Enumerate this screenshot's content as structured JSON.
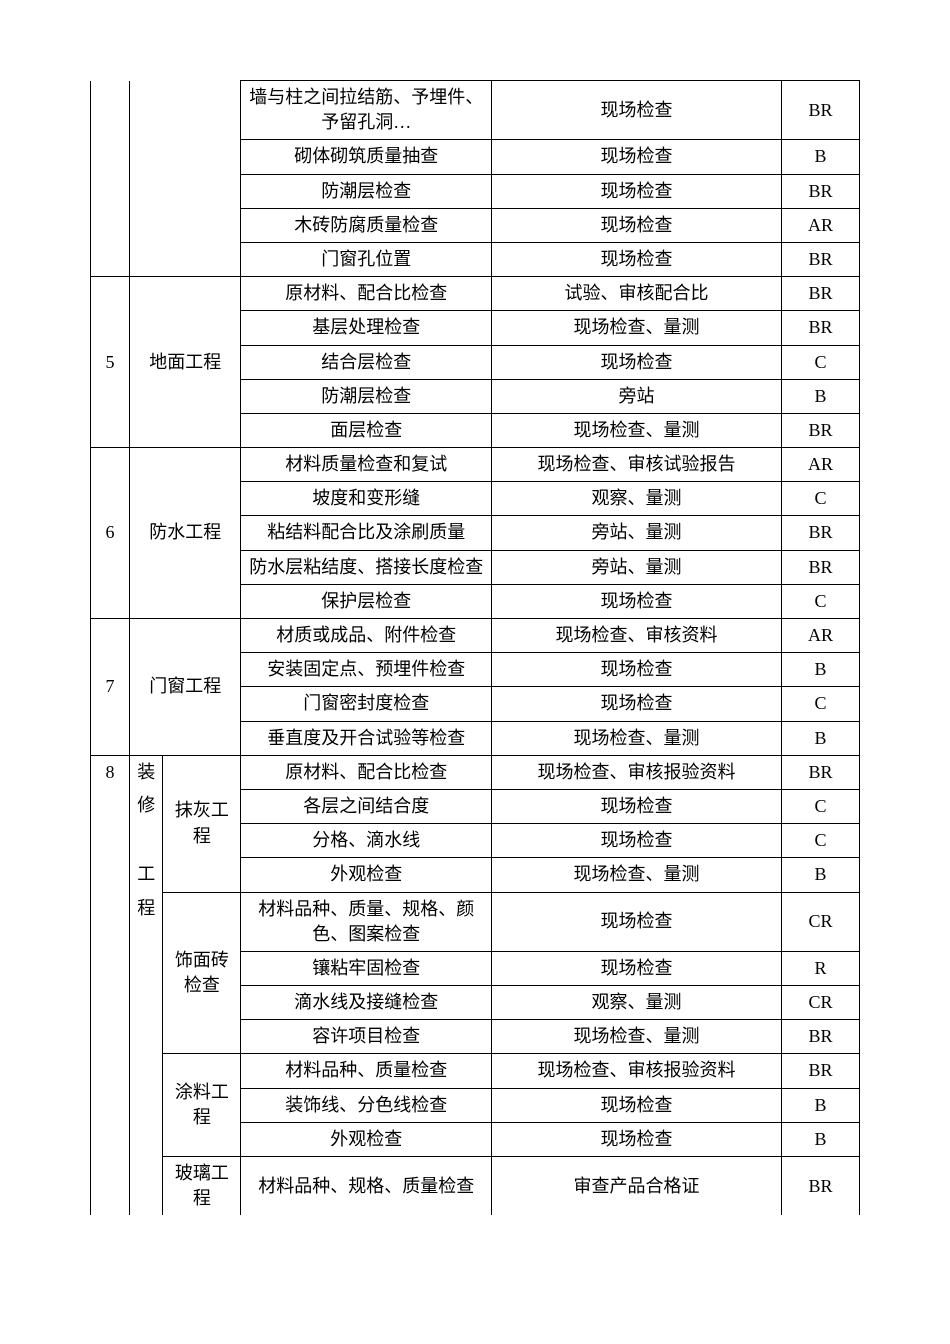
{
  "table": {
    "background_color": "#ffffff",
    "border_color": "#000000",
    "font_size": 18,
    "font_family": "SimSun",
    "text_color": "#000000",
    "columns": {
      "num_width": 35,
      "cat_width": 30,
      "sub_width": 70,
      "item_width": 225,
      "method_width": 260,
      "code_width": 70
    }
  },
  "pre_rows": [
    {
      "item": "墙与柱之间拉结筋、予埋件、予留孔洞…",
      "method": "现场检查",
      "code": "BR"
    },
    {
      "item": "砌体砌筑质量抽查",
      "method": "现场检查",
      "code": "B"
    },
    {
      "item": "防潮层检查",
      "method": "现场检查",
      "code": "BR"
    },
    {
      "item": "木砖防腐质量检查",
      "method": "现场检查",
      "code": "AR"
    },
    {
      "item": "门窗孔位置",
      "method": "现场检查",
      "code": "BR"
    }
  ],
  "section5": {
    "num": "5",
    "title": "地面工程",
    "rows": [
      {
        "item": "原材料、配合比检查",
        "method": "试验、审核配合比",
        "code": "BR"
      },
      {
        "item": "基层处理检查",
        "method": "现场检查、量测",
        "code": "BR"
      },
      {
        "item": "结合层检查",
        "method": "现场检查",
        "code": "C"
      },
      {
        "item": "防潮层检查",
        "method": "旁站",
        "code": "B"
      },
      {
        "item": "面层检查",
        "method": "现场检查、量测",
        "code": "BR"
      }
    ]
  },
  "section6": {
    "num": "6",
    "title": "防水工程",
    "rows": [
      {
        "item": "材料质量检查和复试",
        "method": "现场检查、审核试验报告",
        "code": "AR"
      },
      {
        "item": "坡度和变形缝",
        "method": "观察、量测",
        "code": "C"
      },
      {
        "item": "粘结料配合比及涂刷质量",
        "method": "旁站、量测",
        "code": "BR"
      },
      {
        "item": "防水层粘结度、搭接长度检查",
        "method": "旁站、量测",
        "code": "BR"
      },
      {
        "item": "保护层检查",
        "method": "现场检查",
        "code": "C"
      }
    ]
  },
  "section7": {
    "num": "7",
    "title": "门窗工程",
    "rows": [
      {
        "item": "材质或成品、附件检查",
        "method": "现场检查、审核资料",
        "code": "AR"
      },
      {
        "item": "安装固定点、预埋件检查",
        "method": "现场检查",
        "code": "B"
      },
      {
        "item": "门窗密封度检查",
        "method": "现场检查",
        "code": "C"
      },
      {
        "item": "垂直度及开合试验等检查",
        "method": "现场检查、量测",
        "code": "B"
      }
    ]
  },
  "section8": {
    "num": "8",
    "title_chars": [
      "装",
      "修",
      "工",
      "程"
    ],
    "sub1": {
      "title": "抹灰工程",
      "rows": [
        {
          "item": "原材料、配合比检查",
          "method": "现场检查、审核报验资料",
          "code": "BR"
        },
        {
          "item": "各层之间结合度",
          "method": "现场检查",
          "code": "C"
        },
        {
          "item": "分格、滴水线",
          "method": "现场检查",
          "code": "C"
        },
        {
          "item": "外观检查",
          "method": "现场检查、量测",
          "code": "B"
        }
      ]
    },
    "sub2": {
      "title": "饰面砖检查",
      "rows": [
        {
          "item": "材料品种、质量、规格、颜色、图案检查",
          "method": "现场检查",
          "code": "CR"
        },
        {
          "item": "镶粘牢固检查",
          "method": "现场检查",
          "code": "R"
        },
        {
          "item": "滴水线及接缝检查",
          "method": "观察、量测",
          "code": "CR"
        },
        {
          "item": "容许项目检查",
          "method": "现场检查、量测",
          "code": "BR"
        }
      ]
    },
    "sub3": {
      "title": "涂料工程",
      "rows": [
        {
          "item": "材料品种、质量检查",
          "method": "现场检查、审核报验资料",
          "code": "BR"
        },
        {
          "item": "装饰线、分色线检查",
          "method": "现场检查",
          "code": "B"
        },
        {
          "item": "外观检查",
          "method": "现场检查",
          "code": "B"
        }
      ]
    },
    "sub4": {
      "title": "玻璃工程",
      "rows": [
        {
          "item": "材料品种、规格、质量检查",
          "method": "审查产品合格证",
          "code": "BR"
        }
      ]
    }
  }
}
